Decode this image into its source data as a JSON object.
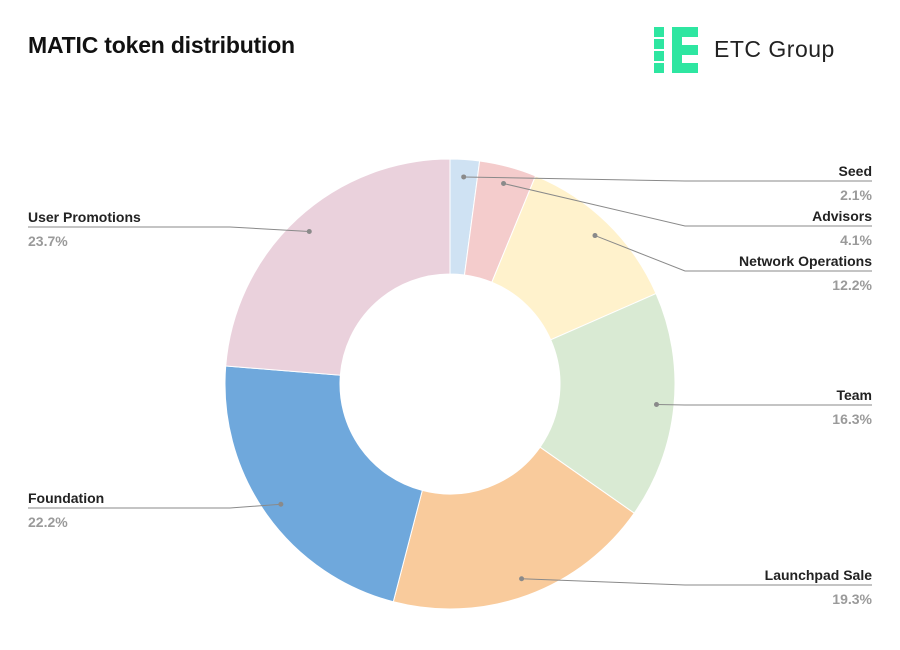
{
  "title": "MATIC token distribution",
  "logo": {
    "text": "ETC Group",
    "color": "#2ee6a1",
    "icon": "etc-group-logo-icon"
  },
  "chart_data": {
    "type": "pie",
    "title": "MATIC token distribution",
    "style": "donut",
    "unit": "%",
    "slices": [
      {
        "label": "Seed",
        "value": 2.1,
        "display": "2.1%",
        "color": "#cfe2f3"
      },
      {
        "label": "Advisors",
        "value": 4.1,
        "display": "4.1%",
        "color": "#f4cccc"
      },
      {
        "label": "Network Operations",
        "value": 12.2,
        "display": "12.2%",
        "color": "#fff2cc"
      },
      {
        "label": "Team",
        "value": 16.3,
        "display": "16.3%",
        "color": "#d9ead3"
      },
      {
        "label": "Launchpad Sale",
        "value": 19.3,
        "display": "19.3%",
        "color": "#f9cb9c"
      },
      {
        "label": "Foundation",
        "value": 22.2,
        "display": "22.2%",
        "color": "#6fa8dc"
      },
      {
        "label": "User Promotions",
        "value": 23.7,
        "display": "23.7%",
        "color": "#ead1dc"
      }
    ]
  }
}
